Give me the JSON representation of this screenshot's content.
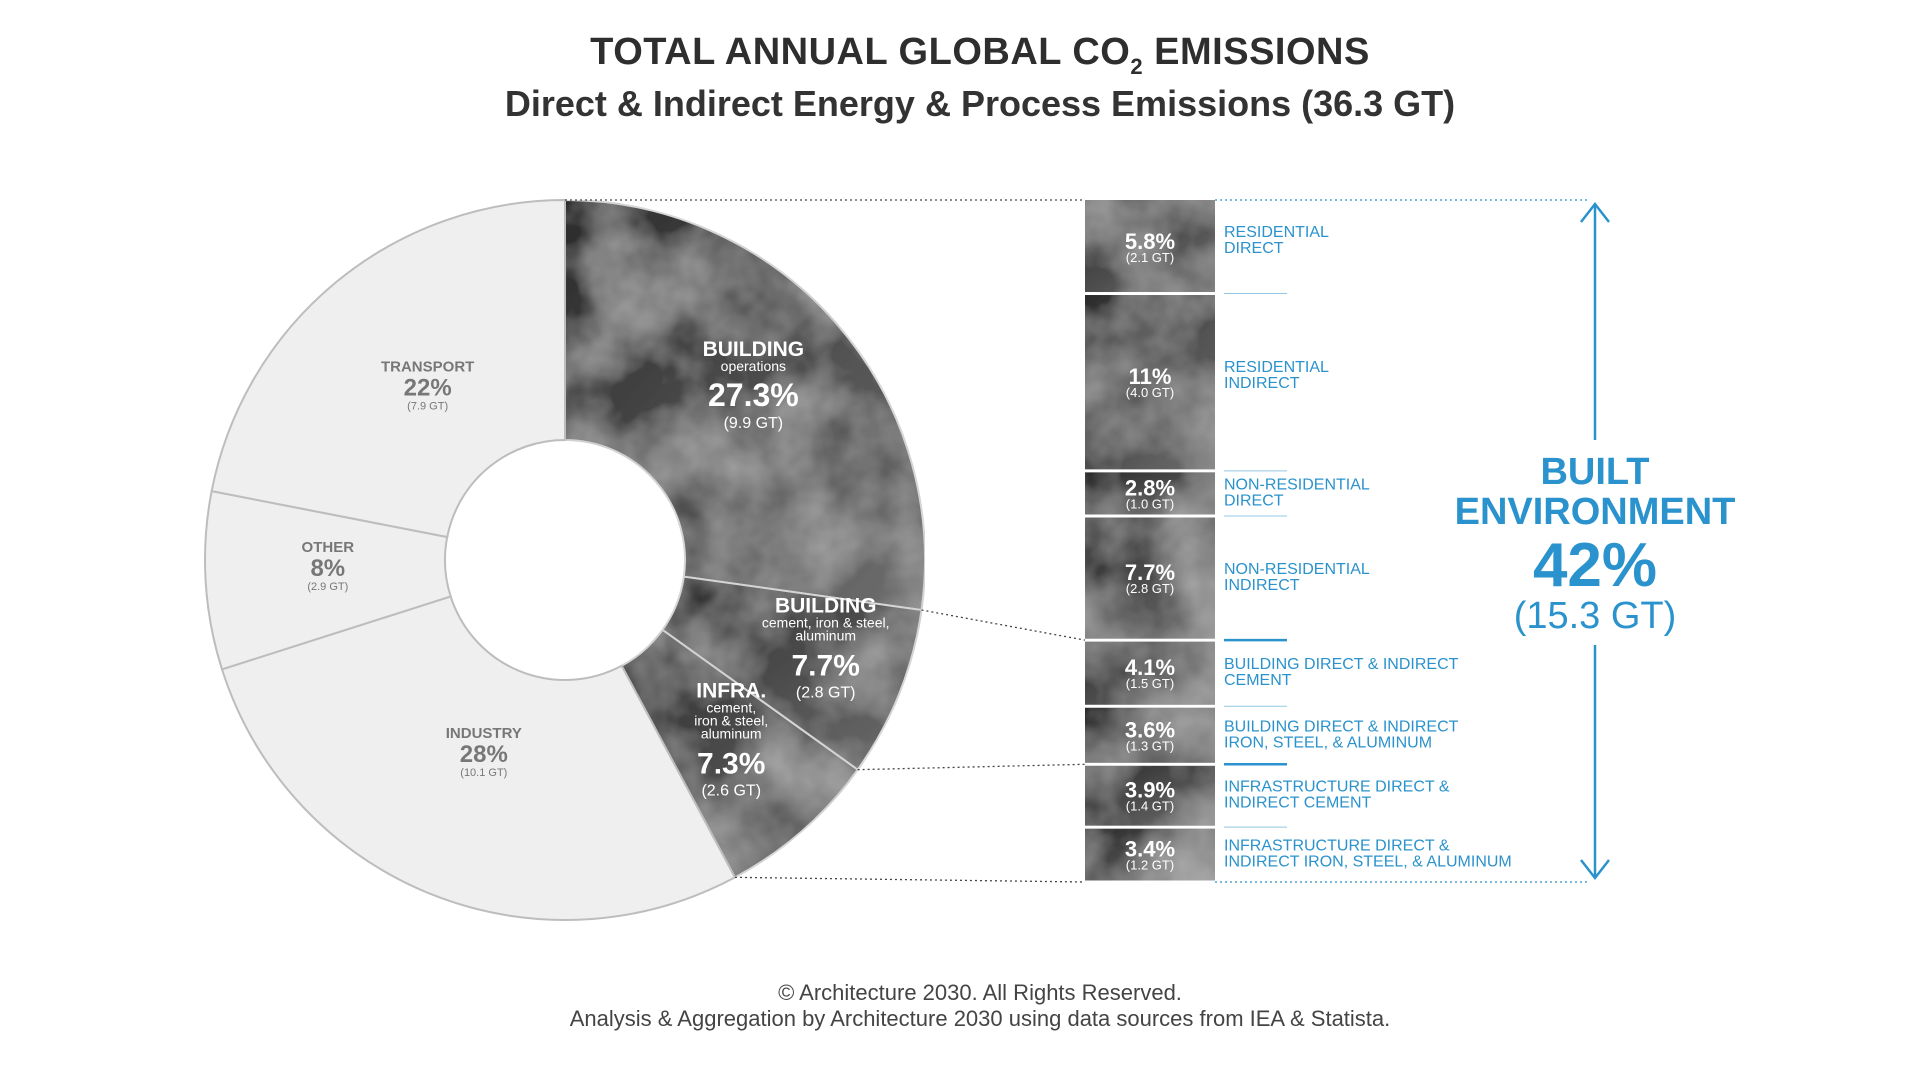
{
  "title": {
    "line1_pre": "TOTAL ANNUAL GLOBAL CO",
    "line1_sub": "2",
    "line1_post": " EMISSIONS",
    "line2": "Direct & Indirect Energy & Process Emissions (36.3 GT)"
  },
  "colors": {
    "dark_start": "#2b2b2b",
    "dark_end": "#6f6f6f",
    "light": "#efeff0",
    "accent": "#2a92cc",
    "label_gray": "#777777"
  },
  "chart_data": {
    "type": "pie",
    "total": "36.3 GT",
    "slices": [
      {
        "label": "BUILDING",
        "sublabel": "operations",
        "pct": 27.3,
        "pct_label": "27.3%",
        "gt_label": "(9.9 GT)",
        "shade": "dark"
      },
      {
        "label": "BUILDING",
        "sublabel": "cement, iron & steel, aluminum",
        "pct": 7.7,
        "pct_label": "7.7%",
        "gt_label": "(2.8 GT)",
        "shade": "dark"
      },
      {
        "label": "INFRA.",
        "sublabel": "cement, iron & steel, aluminum",
        "pct": 7.3,
        "pct_label": "7.3%",
        "gt_label": "(2.6 GT)",
        "shade": "dark"
      },
      {
        "label": "INDUSTRY",
        "sublabel": "",
        "pct": 28,
        "pct_label": "28%",
        "gt_label": "(10.1 GT)",
        "shade": "light"
      },
      {
        "label": "OTHER",
        "sublabel": "",
        "pct": 8,
        "pct_label": "8%",
        "gt_label": "(2.9 GT)",
        "shade": "light"
      },
      {
        "label": "TRANSPORT",
        "sublabel": "",
        "pct": 22,
        "pct_label": "22%",
        "gt_label": "(7.9 GT)",
        "shade": "light"
      }
    ],
    "breakdown": [
      {
        "pct": 5.8,
        "pct_label": "5.8%",
        "gt_label": "(2.1 GT)",
        "lines": [
          "RESIDENTIAL",
          "DIRECT"
        ]
      },
      {
        "pct": 11,
        "pct_label": "11%",
        "gt_label": "(4.0 GT)",
        "lines": [
          "RESIDENTIAL",
          "INDIRECT"
        ]
      },
      {
        "pct": 2.8,
        "pct_label": "2.8%",
        "gt_label": "(1.0 GT)",
        "lines": [
          "NON-RESIDENTIAL",
          "DIRECT"
        ]
      },
      {
        "pct": 7.7,
        "pct_label": "7.7%",
        "gt_label": "(2.8 GT)",
        "lines": [
          "NON-RESIDENTIAL",
          "INDIRECT"
        ]
      },
      {
        "pct": 4.1,
        "pct_label": "4.1%",
        "gt_label": "(1.5 GT)",
        "lines": [
          "BUILDING DIRECT & INDIRECT",
          "CEMENT"
        ]
      },
      {
        "pct": 3.6,
        "pct_label": "3.6%",
        "gt_label": "(1.3 GT)",
        "lines": [
          "BUILDING DIRECT & INDIRECT",
          "IRON, STEEL, & ALUMINUM"
        ]
      },
      {
        "pct": 3.9,
        "pct_label": "3.9%",
        "gt_label": "(1.4 GT)",
        "lines": [
          "INFRASTRUCTURE DIRECT &",
          "INDIRECT CEMENT"
        ]
      },
      {
        "pct": 3.4,
        "pct_label": "3.4%",
        "gt_label": "(1.2 GT)",
        "lines": [
          "INFRASTRUCTURE DIRECT &",
          "INDIRECT IRON, STEEL, & ALUMINUM"
        ]
      }
    ],
    "built_environment": {
      "label_line1": "BUILT",
      "label_line2": "ENVIRONMENT",
      "pct": 42,
      "pct_label": "42%",
      "gt_label": "(15.3 GT)"
    }
  },
  "footer": {
    "line1": "© Architecture 2030. All Rights Reserved.",
    "line2": "Analysis & Aggregation by Architecture 2030 using data sources from IEA & Statista."
  }
}
